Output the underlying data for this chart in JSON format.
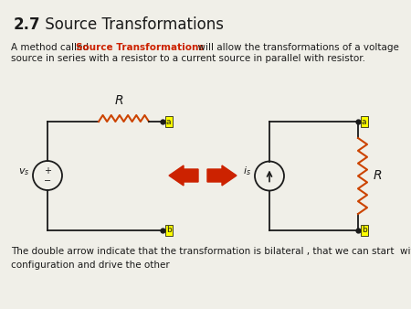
{
  "title_bold": "2.7",
  "title_normal": " Source Transformations",
  "para1_line2": "source in series with a resistor to a current source in parallel with resistor.",
  "para2": "The double arrow indicate that the transformation is bilateral , that we can start  with either\nconfiguration and drive the other",
  "bg_color": "#f0efe8",
  "label_bg": "#ffff00",
  "arrow_color": "#cc2200",
  "resistor_color_left": "#cc4400",
  "resistor_color_right": "#cc4400",
  "wire_color": "#1a1a1a",
  "text_color": "#1a1a1a",
  "red_text": "#cc2200"
}
